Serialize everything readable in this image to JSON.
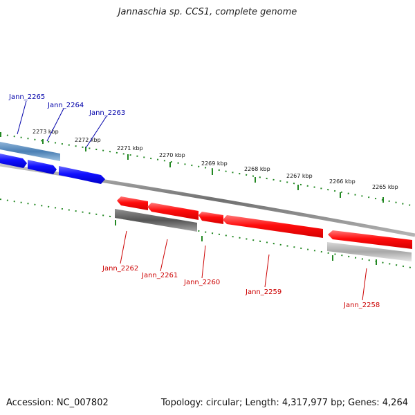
{
  "title": "Jannaschia sp. CCS1, complete genome",
  "accession": "Accession: NC_007802",
  "genome_info": "Topology: circular; Length: 4,317,977 bp; Genes: 4,264",
  "colors": {
    "forward_strand": "#1010ff",
    "reverse_strand": "#ff1010",
    "forward_label": "#0000aa",
    "reverse_label": "#cc0000",
    "ticks": "#228822",
    "backbone": "#888888"
  },
  "ticks": [
    "2273 kbp",
    "2272 kbp",
    "2271 kbp",
    "2270 kbp",
    "2269 kbp",
    "2268 kbp",
    "2267 kbp",
    "2266 kbp",
    "2265 kbp"
  ],
  "forward_genes": [
    "Jann_2265",
    "Jann_2264",
    "Jann_2263"
  ],
  "reverse_genes": [
    "Jann_2262",
    "Jann_2261",
    "Jann_2260",
    "Jann_2259",
    "Jann_2258"
  ]
}
